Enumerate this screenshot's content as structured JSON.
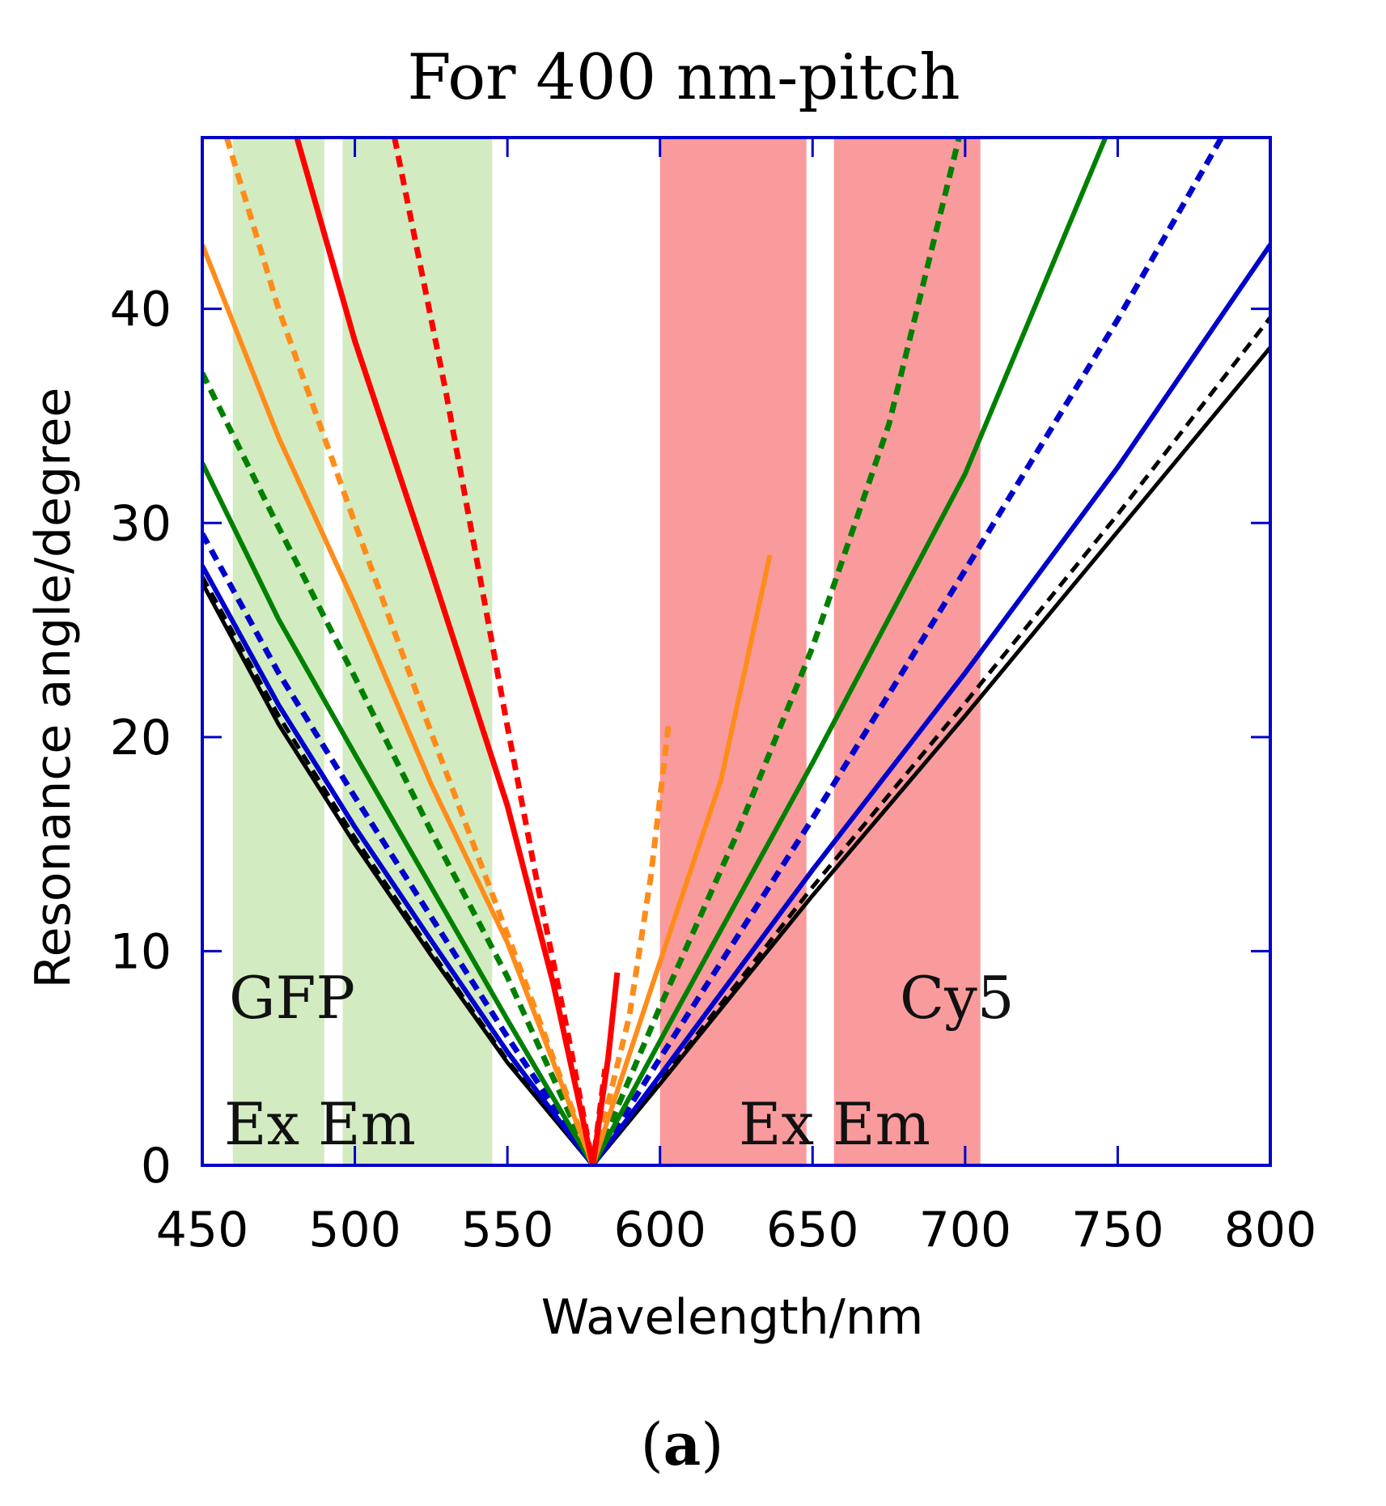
{
  "chart_data": {
    "type": "line",
    "title": "For 400 nm-pitch",
    "xlabel": "Wavelength/nm",
    "ylabel": "Resonance angle/degree",
    "xlim": [
      450,
      800
    ],
    "ylim": [
      0,
      48
    ],
    "xticks": [
      450,
      500,
      550,
      600,
      650,
      700,
      750,
      800
    ],
    "yticks": [
      0,
      10,
      20,
      30,
      40
    ],
    "grid": false,
    "axis_color": "#0000cc",
    "bands": [
      {
        "name": "GFP Ex",
        "range": [
          460,
          490
        ],
        "color": "#d3ebc1"
      },
      {
        "name": "GFP Em",
        "range": [
          496,
          545
        ],
        "color": "#d3ebc1"
      },
      {
        "name": "Cy5 Ex",
        "range": [
          600,
          648
        ],
        "color": "#f99b9c"
      },
      {
        "name": "Cy5 Em",
        "range": [
          657,
          705
        ],
        "color": "#f99b9c"
      }
    ],
    "annotations": [
      {
        "text": "GFP",
        "at": [
          458,
          6.8
        ]
      },
      {
        "text": "Ex Em",
        "at": [
          457,
          0.9
        ]
      },
      {
        "text": "Cy5",
        "at": [
          672,
          6.8
        ]
      },
      {
        "text": "Ex Em",
        "at": [
          629,
          0.9
        ]
      }
    ],
    "series": [
      {
        "color": "#000000",
        "style": "solid",
        "width": 5,
        "x": [
          450,
          475,
          500,
          525,
          550,
          578,
          600,
          650,
          700,
          750,
          800
        ],
        "y": [
          27.2,
          20.6,
          15.0,
          9.8,
          4.8,
          0,
          3.8,
          12.6,
          21.0,
          29.6,
          38.2
        ]
      },
      {
        "color": "#000000",
        "style": "dashed",
        "width": 5,
        "x": [
          450,
          475,
          500,
          525,
          550,
          578,
          600,
          650,
          700,
          750,
          800
        ],
        "y": [
          27.5,
          21.0,
          15.3,
          10.0,
          4.9,
          0,
          3.9,
          13.0,
          21.6,
          30.4,
          39.6
        ]
      },
      {
        "color": "#0000cc",
        "style": "solid",
        "width": 6,
        "x": [
          450,
          475,
          500,
          525,
          550,
          578,
          600,
          650,
          700,
          750,
          800
        ],
        "y": [
          28.0,
          21.5,
          15.8,
          10.5,
          5.3,
          0,
          4.2,
          13.8,
          23.0,
          32.6,
          43.0
        ]
      },
      {
        "color": "#0000cc",
        "style": "dashed",
        "width": 7,
        "x": [
          450,
          475,
          500,
          525,
          550,
          578,
          600,
          650,
          700,
          750,
          800
        ],
        "y": [
          29.5,
          23.0,
          17.2,
          11.6,
          6.0,
          0,
          5.0,
          16.2,
          27.8,
          39.5,
          52.0
        ]
      },
      {
        "color": "#008000",
        "style": "solid",
        "width": 6,
        "x": [
          450,
          475,
          500,
          525,
          550,
          578,
          600,
          650,
          700,
          746
        ],
        "y": [
          32.8,
          25.5,
          19.2,
          13.0,
          6.8,
          0,
          5.8,
          18.8,
          32.3,
          48.0
        ]
      },
      {
        "color": "#008000",
        "style": "dashed",
        "width": 7,
        "x": [
          450,
          475,
          500,
          525,
          550,
          578,
          600,
          625,
          650,
          675,
          698
        ],
        "y": [
          37.0,
          29.8,
          22.8,
          15.6,
          8.8,
          0,
          7.4,
          15.4,
          24.2,
          34.6,
          48.0
        ]
      },
      {
        "color": "#ff8c1a",
        "style": "solid",
        "width": 6,
        "x": [
          450,
          475,
          500,
          525,
          550,
          578,
          590,
          600,
          620,
          636
        ],
        "y": [
          43.0,
          34.0,
          26.2,
          17.8,
          10.4,
          0,
          5.2,
          9.5,
          18.0,
          28.5
        ]
      },
      {
        "color": "#ff8c1a",
        "style": "dashed",
        "width": 7,
        "x": [
          458,
          475,
          500,
          525,
          550,
          578,
          590,
          597,
          603
        ],
        "y": [
          48.0,
          40.0,
          30.0,
          20.2,
          10.8,
          0,
          7.0,
          13.5,
          20.8
        ]
      },
      {
        "color": "#ff0000",
        "style": "solid",
        "width": 7,
        "x": [
          481,
          500,
          525,
          550,
          565,
          578,
          583,
          586
        ],
        "y": [
          48.0,
          38.5,
          27.8,
          16.8,
          8.5,
          0,
          5.0,
          9.0
        ]
      },
      {
        "color": "#ff0000",
        "style": "dashed",
        "width": 7,
        "x": [
          513,
          530,
          550,
          560,
          570,
          578,
          582
        ],
        "y": [
          48.0,
          36.0,
          20.5,
          13.0,
          6.0,
          0,
          4.5
        ]
      }
    ]
  },
  "figure": {
    "panel_label_open": "(",
    "panel_label_letter": "a",
    "panel_label_close": ")"
  }
}
